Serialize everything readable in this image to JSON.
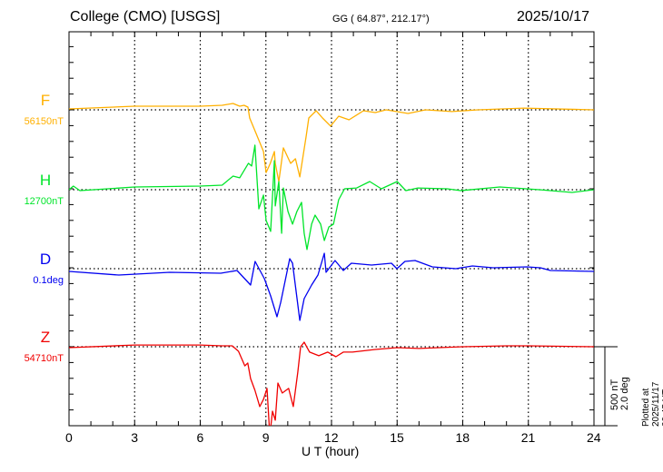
{
  "header": {
    "title": "College (CMO)  [USGS]",
    "coords": "GG ( 64.87°, 212.17°)",
    "date": "2025/10/17"
  },
  "footer": {
    "plotted": "Plotted at 2025/11/17 00:45 UT"
  },
  "scale_bar": {
    "line1": "500 nT",
    "line2": "2.0 deg"
  },
  "chart_data": {
    "type": "line",
    "title": "College (CMO)  [USGS]",
    "xlabel": "U T (hour)",
    "xlim": [
      0,
      24
    ],
    "x_ticks": [
      "0",
      "3",
      "6",
      "9",
      "12",
      "15",
      "18",
      "21",
      "24"
    ],
    "grid": true,
    "scale_nT": 500,
    "scale_deg": 2.0,
    "colors": {
      "F": "#ffb000",
      "H": "#00e52a",
      "D": "#0000f0",
      "Z": "#f00000"
    },
    "series": [
      {
        "name": "F",
        "unit": "nT",
        "baseline_label": "56150nT",
        "baseline": 56150,
        "points": [
          [
            0,
            56156
          ],
          [
            3,
            56173
          ],
          [
            6,
            56173
          ],
          [
            7,
            56179
          ],
          [
            7.5,
            56190
          ],
          [
            7.8,
            56173
          ],
          [
            8.0,
            56179
          ],
          [
            8.18,
            56167
          ],
          [
            8.26,
            56098
          ],
          [
            8.55,
            56001
          ],
          [
            8.89,
            55886
          ],
          [
            9.01,
            55753
          ],
          [
            9.2,
            55811
          ],
          [
            9.39,
            55886
          ],
          [
            9.43,
            55811
          ],
          [
            9.59,
            55696
          ],
          [
            9.8,
            55909
          ],
          [
            10.13,
            55811
          ],
          [
            10.35,
            55840
          ],
          [
            10.55,
            55725
          ],
          [
            10.84,
            55983
          ],
          [
            10.96,
            56098
          ],
          [
            11.3,
            56144
          ],
          [
            11.59,
            56098
          ],
          [
            11.96,
            56047
          ],
          [
            12.33,
            56110
          ],
          [
            12.8,
            56087
          ],
          [
            13.46,
            56144
          ],
          [
            14.0,
            56133
          ],
          [
            14.5,
            56150
          ],
          [
            15.5,
            56127
          ],
          [
            16.3,
            56150
          ],
          [
            17.5,
            56139
          ],
          [
            18.7,
            56150
          ],
          [
            20.8,
            56161
          ],
          [
            24,
            56150
          ]
        ]
      },
      {
        "name": "H",
        "unit": "nT",
        "baseline_label": "12700nT",
        "baseline": 12700,
        "points": [
          [
            0,
            12700
          ],
          [
            0.2,
            12723
          ],
          [
            0.5,
            12694
          ],
          [
            3,
            12717
          ],
          [
            6,
            12723
          ],
          [
            7,
            12729
          ],
          [
            7.5,
            12786
          ],
          [
            7.8,
            12775
          ],
          [
            8.2,
            12867
          ],
          [
            8.35,
            12850
          ],
          [
            8.5,
            12982
          ],
          [
            8.68,
            12579
          ],
          [
            8.89,
            12666
          ],
          [
            9.01,
            12505
          ],
          [
            9.22,
            12436
          ],
          [
            9.39,
            12884
          ],
          [
            9.43,
            12597
          ],
          [
            9.59,
            12752
          ],
          [
            9.72,
            12424
          ],
          [
            9.8,
            12711
          ],
          [
            10.01,
            12562
          ],
          [
            10.22,
            12482
          ],
          [
            10.42,
            12562
          ],
          [
            10.63,
            12620
          ],
          [
            10.75,
            12424
          ],
          [
            10.88,
            12321
          ],
          [
            11.09,
            12482
          ],
          [
            11.25,
            12539
          ],
          [
            11.5,
            12482
          ],
          [
            11.67,
            12378
          ],
          [
            11.88,
            12464
          ],
          [
            12.09,
            12482
          ],
          [
            12.33,
            12637
          ],
          [
            12.6,
            12706
          ],
          [
            13.15,
            12711
          ],
          [
            13.75,
            12752
          ],
          [
            14.28,
            12706
          ],
          [
            15.0,
            12752
          ],
          [
            15.4,
            12694
          ],
          [
            15.95,
            12711
          ],
          [
            17.3,
            12706
          ],
          [
            17.9,
            12694
          ],
          [
            19.7,
            12717
          ],
          [
            21.5,
            12700
          ],
          [
            23.0,
            12683
          ],
          [
            24,
            12700
          ]
        ]
      },
      {
        "name": "D",
        "unit": "deg",
        "baseline_label": "0.1deg",
        "baseline": 0.1,
        "points": [
          [
            0,
            0.031
          ],
          [
            2.28,
            -0.061
          ],
          [
            4.6,
            0.008
          ],
          [
            6.94,
            -0.015
          ],
          [
            7.68,
            0.054
          ],
          [
            8.3,
            -0.314
          ],
          [
            8.51,
            0.284
          ],
          [
            8.93,
            -0.153
          ],
          [
            9.22,
            -0.59
          ],
          [
            9.51,
            -1.119
          ],
          [
            9.68,
            -0.751
          ],
          [
            10.09,
            0.353
          ],
          [
            10.22,
            0.238
          ],
          [
            10.55,
            -1.211
          ],
          [
            10.75,
            -0.659
          ],
          [
            11.09,
            -0.314
          ],
          [
            11.38,
            -0.061
          ],
          [
            11.67,
            0.491
          ],
          [
            11.75,
            0.008
          ],
          [
            12.16,
            0.307
          ],
          [
            12.54,
            0.054
          ],
          [
            12.91,
            0.238
          ],
          [
            13.83,
            0.192
          ],
          [
            14.74,
            0.238
          ],
          [
            14.99,
            0.1
          ],
          [
            15.36,
            0.284
          ],
          [
            15.82,
            0.307
          ],
          [
            16.61,
            0.146
          ],
          [
            17.69,
            0.1
          ],
          [
            18.44,
            0.169
          ],
          [
            19.39,
            0.123
          ],
          [
            20.93,
            0.146
          ],
          [
            21.55,
            0.123
          ],
          [
            22.01,
            0.054
          ],
          [
            24,
            0.031
          ]
        ]
      },
      {
        "name": "Z",
        "unit": "nT",
        "baseline_label": "54710nT",
        "baseline": 54710,
        "points": [
          [
            0,
            54704
          ],
          [
            3,
            54721
          ],
          [
            6,
            54721
          ],
          [
            7,
            54716
          ],
          [
            7.46,
            54716
          ],
          [
            7.75,
            54681
          ],
          [
            8.04,
            54589
          ],
          [
            8.17,
            54607
          ],
          [
            8.3,
            54509
          ],
          [
            8.5,
            54434
          ],
          [
            8.72,
            54331
          ],
          [
            8.89,
            54377
          ],
          [
            9.05,
            54446
          ],
          [
            9.18,
            54147
          ],
          [
            9.3,
            54302
          ],
          [
            9.43,
            54245
          ],
          [
            9.55,
            54480
          ],
          [
            9.75,
            54417
          ],
          [
            10.04,
            54446
          ],
          [
            10.25,
            54331
          ],
          [
            10.46,
            54549
          ],
          [
            10.59,
            54710
          ],
          [
            10.75,
            54739
          ],
          [
            11.0,
            54676
          ],
          [
            11.42,
            54653
          ],
          [
            11.83,
            54676
          ],
          [
            12.2,
            54647
          ],
          [
            12.54,
            54676
          ],
          [
            12.96,
            54676
          ],
          [
            14,
            54693
          ],
          [
            15,
            54704
          ],
          [
            16,
            54699
          ],
          [
            18,
            54710
          ],
          [
            20,
            54716
          ],
          [
            21,
            54716
          ],
          [
            24,
            54710
          ]
        ]
      }
    ]
  }
}
